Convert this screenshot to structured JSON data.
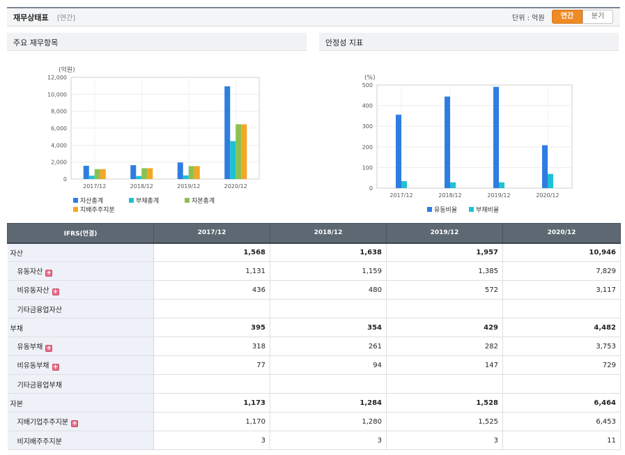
{
  "header": {
    "title": "재무상태표",
    "subtitle": "[연간]",
    "unit_label": "단위 : 억원",
    "tabs": [
      {
        "label": "연간",
        "active": true
      },
      {
        "label": "분기",
        "active": false
      }
    ]
  },
  "panels": {
    "left_title": "주요 재무항목",
    "right_title": "안정성 지표"
  },
  "colors": {
    "blue": "#2f7de1",
    "cyan": "#1ec1d3",
    "green": "#8cc152",
    "orange": "#f5a623",
    "header_bg": "#5d6873",
    "accent": "#f08a25"
  },
  "chart_data": [
    {
      "type": "bar",
      "unit": "(억원)",
      "categories": [
        "2017/12",
        "2018/12",
        "2019/12",
        "2020/12"
      ],
      "ylim": [
        0,
        12000
      ],
      "yticks": [
        "0",
        "2,000",
        "4,000",
        "6,000",
        "8,000",
        "10,000",
        "12,000"
      ],
      "series": [
        {
          "name": "자산총계",
          "color": "#2f7de1",
          "values": [
            1568,
            1638,
            1957,
            10946
          ]
        },
        {
          "name": "부채총계",
          "color": "#1ec1d3",
          "values": [
            395,
            354,
            429,
            4482
          ]
        },
        {
          "name": "자본총계",
          "color": "#8cc152",
          "values": [
            1173,
            1284,
            1528,
            6464
          ]
        },
        {
          "name": "지배주주지분",
          "color": "#f5a623",
          "values": [
            1170,
            1280,
            1525,
            6453
          ]
        }
      ],
      "grid": true,
      "legend": "bottom"
    },
    {
      "type": "bar",
      "unit": "(%)",
      "categories": [
        "2017/12",
        "2018/12",
        "2019/12",
        "2020/12"
      ],
      "ylim": [
        0,
        500
      ],
      "yticks": [
        "0",
        "100",
        "200",
        "300",
        "400",
        "500"
      ],
      "series": [
        {
          "name": "유동비율",
          "color": "#2f7de1",
          "values": [
            356,
            444,
            491,
            208
          ]
        },
        {
          "name": "부채비율",
          "color": "#1ec1d3",
          "values": [
            34,
            28,
            28,
            69
          ]
        }
      ],
      "grid": true,
      "legend": "bottom"
    }
  ],
  "table": {
    "headers": [
      "IFRS(연결)",
      "2017/12",
      "2018/12",
      "2019/12",
      "2020/12"
    ],
    "rows": [
      {
        "label": "자산",
        "level": 0,
        "expand": false,
        "values": [
          "1,568",
          "1,638",
          "1,957",
          "10,946"
        ]
      },
      {
        "label": "유동자산",
        "level": 1,
        "expand": true,
        "values": [
          "1,131",
          "1,159",
          "1,385",
          "7,829"
        ]
      },
      {
        "label": "비유동자산",
        "level": 1,
        "expand": true,
        "values": [
          "436",
          "480",
          "572",
          "3,117"
        ]
      },
      {
        "label": "기타금융업자산",
        "level": 1,
        "expand": false,
        "values": [
          "",
          "",
          "",
          ""
        ]
      },
      {
        "label": "부채",
        "level": 0,
        "expand": false,
        "values": [
          "395",
          "354",
          "429",
          "4,482"
        ]
      },
      {
        "label": "유동부채",
        "level": 1,
        "expand": true,
        "values": [
          "318",
          "261",
          "282",
          "3,753"
        ]
      },
      {
        "label": "비유동부채",
        "level": 1,
        "expand": true,
        "values": [
          "77",
          "94",
          "147",
          "729"
        ]
      },
      {
        "label": "기타금융업부채",
        "level": 1,
        "expand": false,
        "values": [
          "",
          "",
          "",
          ""
        ]
      },
      {
        "label": "자본",
        "level": 0,
        "expand": false,
        "values": [
          "1,173",
          "1,284",
          "1,528",
          "6,464"
        ]
      },
      {
        "label": "지배기업주주지분",
        "level": 1,
        "expand": true,
        "values": [
          "1,170",
          "1,280",
          "1,525",
          "6,453"
        ]
      },
      {
        "label": "비지배주주지분",
        "level": 1,
        "expand": false,
        "values": [
          "3",
          "3",
          "3",
          "11"
        ]
      }
    ]
  }
}
